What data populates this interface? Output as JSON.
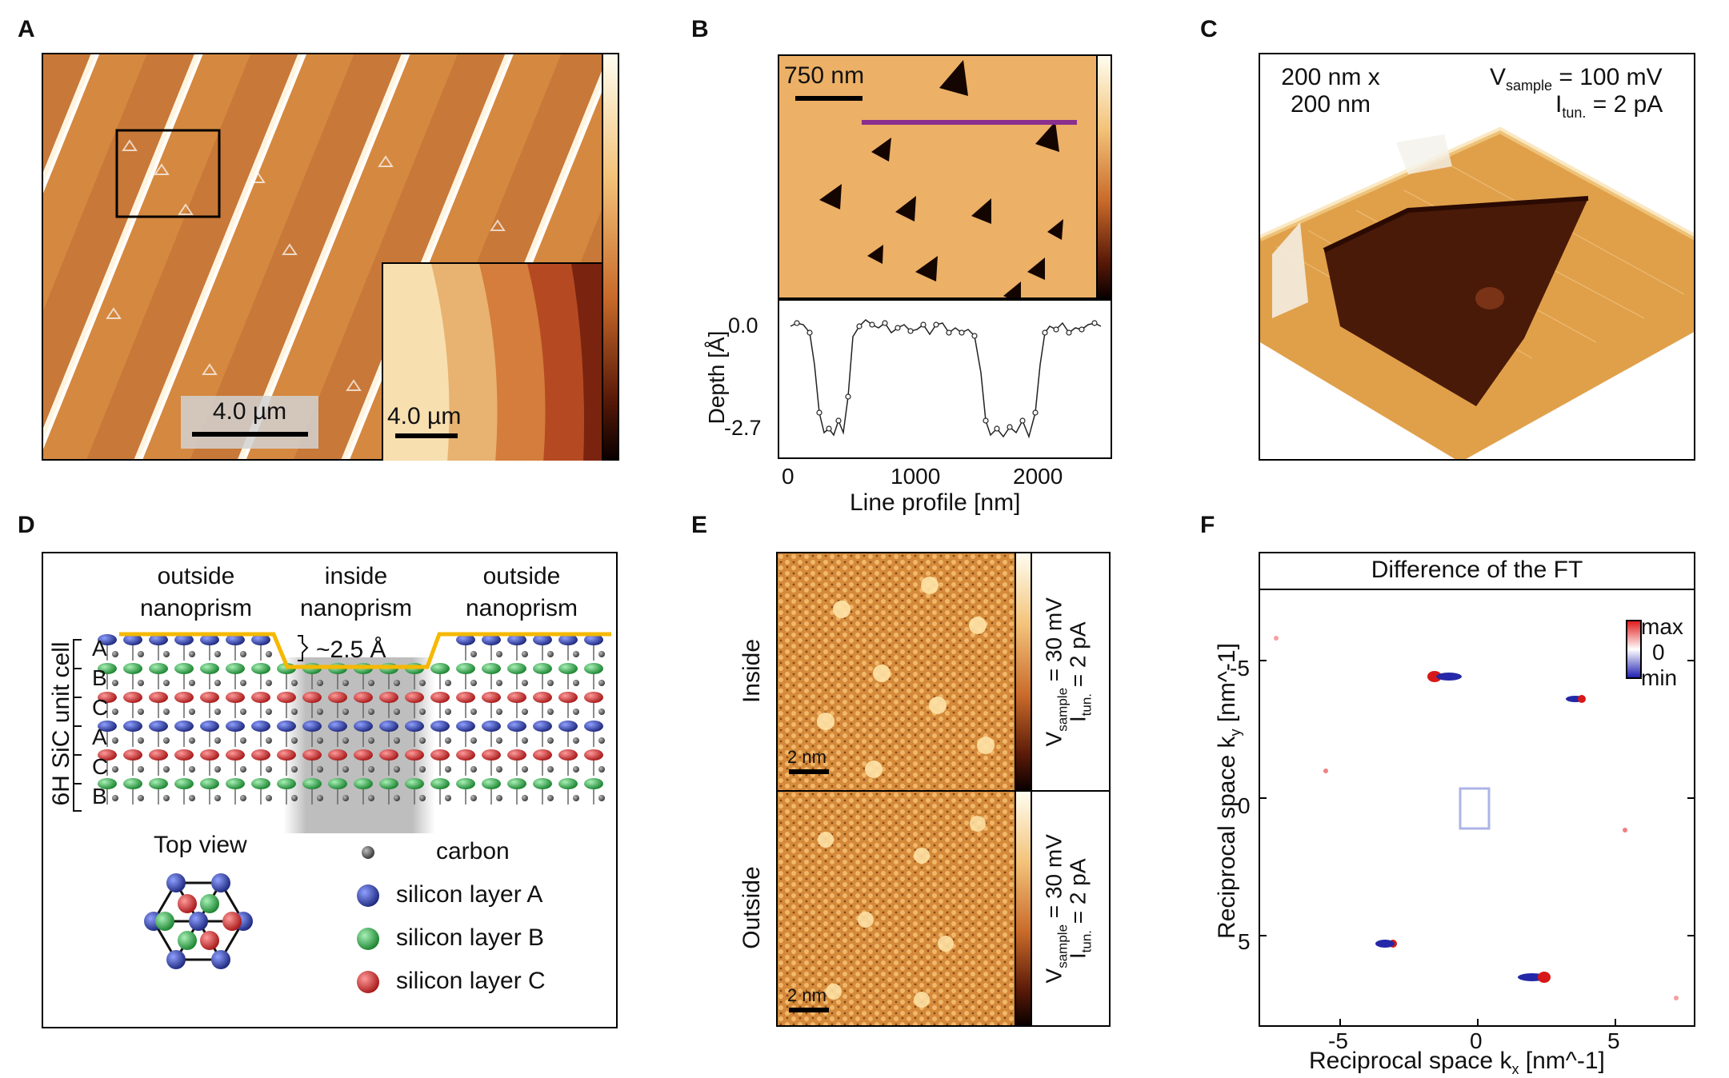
{
  "panels": {
    "A": {
      "label": "A",
      "scalebar_main": "4.0 µm",
      "scalebar_inset": "4.0 µm"
    },
    "B": {
      "label": "B",
      "scalebar": "750 nm",
      "profile": {
        "ylabel": "Depth [Å]",
        "xlabel": "Line profile [nm]",
        "yticks": [
          "0.0",
          "-2.7"
        ],
        "xticks": [
          "0",
          "1000",
          "2000"
        ]
      }
    },
    "C": {
      "label": "C",
      "size_line1": "200 nm x",
      "size_line2": "200 nm",
      "v_main": "V",
      "v_sub": "sample",
      "v_val": " = 100 mV",
      "i_main": "I",
      "i_sub": "tun.",
      "i_val": " = 2 pA"
    },
    "D": {
      "label": "D",
      "col1_l1": "outside",
      "col1_l2": "nanoprism",
      "col2_l1": "inside",
      "col2_l2": "nanoprism",
      "col3_l1": "outside",
      "col3_l2": "nanoprism",
      "step": "~2.5 Å",
      "unit_cell": "6H SiC unit cell",
      "layers": [
        "A",
        "B",
        "C",
        "A",
        "C",
        "B"
      ],
      "top_view": "Top view",
      "legend": {
        "carbon": "carbon",
        "a": "silicon layer A",
        "b": "silicon layer B",
        "c": "silicon layer C"
      }
    },
    "E": {
      "label": "E",
      "row1": "Inside",
      "row2": "Outside",
      "scalebar": "2 nm",
      "v_main": "V",
      "v_sub": "sample",
      "v_val": " =  30 mV",
      "i_main": "I",
      "i_sub": "tun.",
      "i_val": " = 2 pA"
    },
    "F": {
      "label": "F",
      "title": "Difference of the FT",
      "cbar": [
        "max",
        "0",
        "min"
      ],
      "xlabel_main": "Reciprocal space k",
      "xlabel_sub": "x",
      "xlabel_unit": " [nm^-1]",
      "ylabel_main": "Reciprocal space k",
      "ylabel_sub": "y",
      "ylabel_unit": " [nm^-1]",
      "xticks": [
        "-5",
        "0",
        "5"
      ],
      "yticks": [
        "-5",
        "0",
        "5"
      ]
    }
  },
  "colors": {
    "afm_light": "#f3c37a",
    "afm_mid": "#d98a3c",
    "afm_dark": "#3a1406",
    "profile_line": "#8b2f8f",
    "step_line": "#f5b800",
    "si_a": "#2b3a9e",
    "si_b": "#27a844",
    "si_c": "#cc2222",
    "carbon": "#555555"
  }
}
